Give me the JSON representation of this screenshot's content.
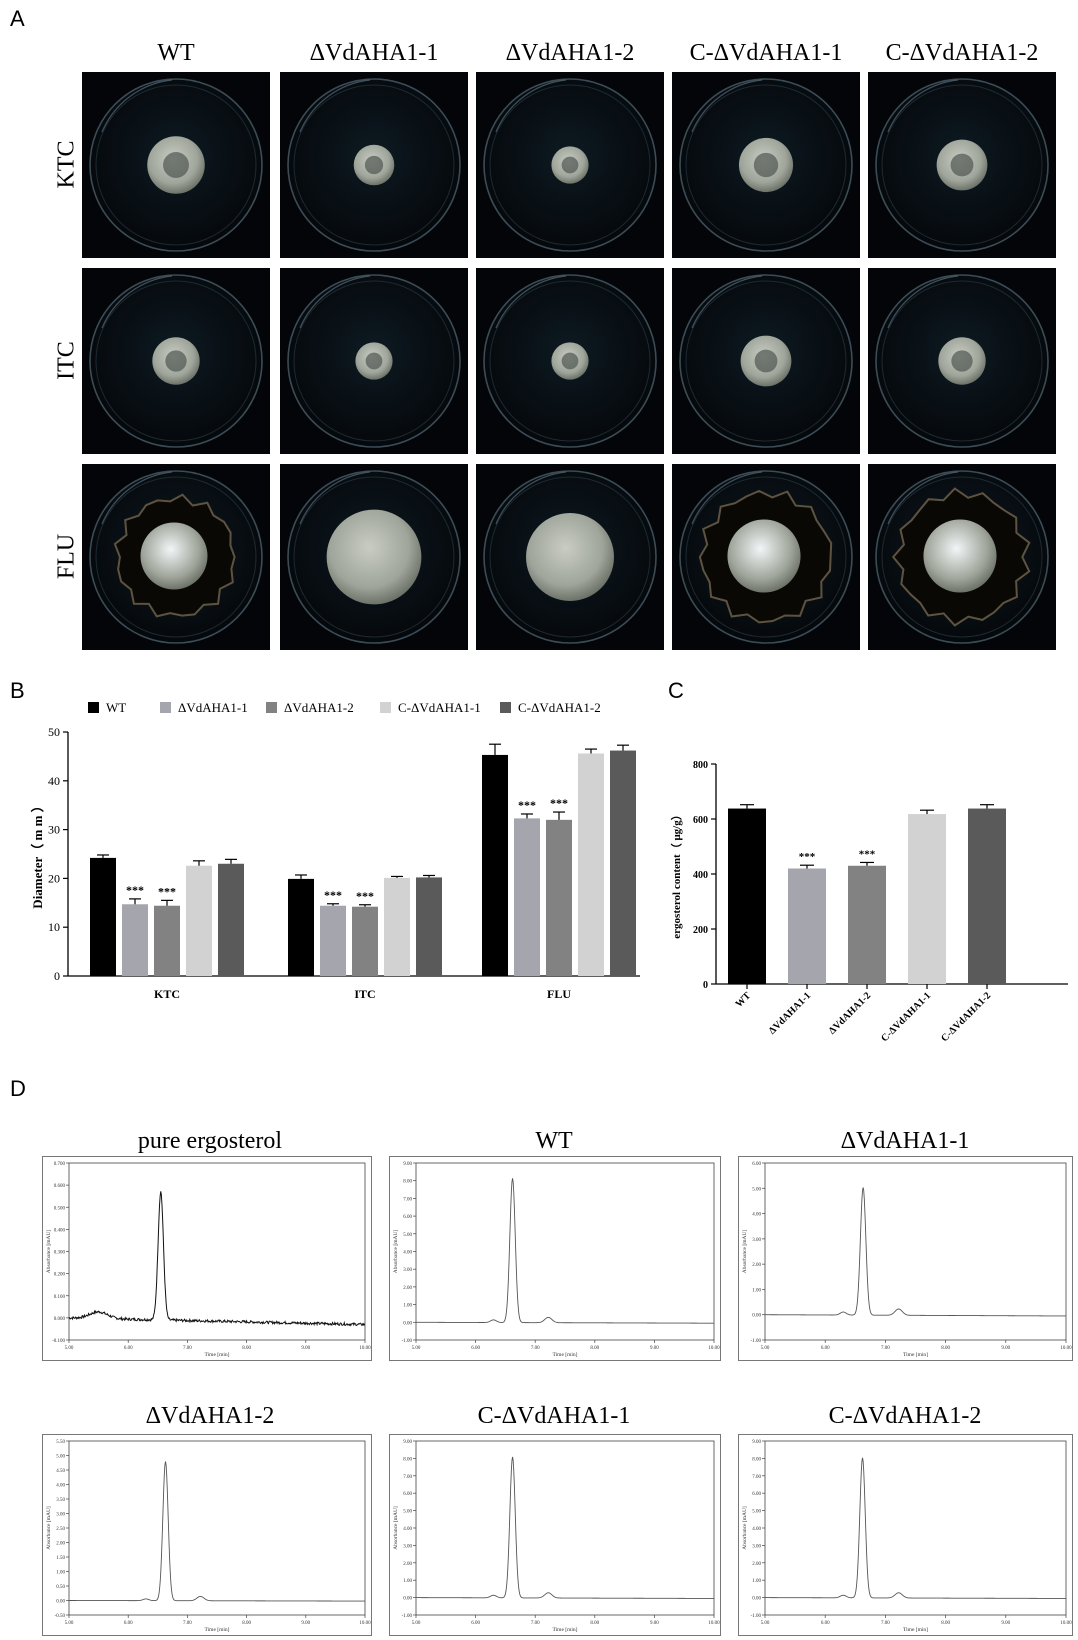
{
  "panels": {
    "a": "A",
    "b": "B",
    "c": "C",
    "d": "D"
  },
  "panel_a": {
    "columns": [
      "WT",
      "ΔVdAHA1-1",
      "ΔVdAHA1-2",
      "C-ΔVdAHA1-1",
      "C-ΔVdAHA1-2"
    ],
    "rows": [
      "KTC",
      "ITC",
      "FLU"
    ]
  },
  "chart_data": [
    {
      "type": "bar",
      "panel": "B",
      "ylabel": "Diameter（ m m ）",
      "ylim": [
        0,
        50
      ],
      "yticks": [
        0,
        10,
        20,
        30,
        40,
        50
      ],
      "categories": [
        "KTC",
        "ITC",
        "FLU"
      ],
      "legend_position": "top",
      "series": [
        {
          "name": "WT",
          "color": "#000000",
          "values": [
            24.2,
            19.9,
            45.3
          ],
          "errors": [
            0.6,
            0.8,
            2.2
          ],
          "sig": [
            "",
            "",
            ""
          ]
        },
        {
          "name": "ΔVdAHA1-1",
          "color": "#a5a5ad",
          "values": [
            14.7,
            14.4,
            32.3
          ],
          "errors": [
            1.1,
            0.4,
            0.9
          ],
          "sig": [
            "***",
            "***",
            "***"
          ]
        },
        {
          "name": "ΔVdAHA1-2",
          "color": "#828282",
          "values": [
            14.4,
            14.2,
            32.0
          ],
          "errors": [
            1.1,
            0.4,
            1.6
          ],
          "sig": [
            "***",
            "***",
            "***"
          ]
        },
        {
          "name": "C-ΔVdAHA1-1",
          "color": "#d2d2d2",
          "values": [
            22.6,
            20.1,
            45.6
          ],
          "errors": [
            1.0,
            0.3,
            0.9
          ],
          "sig": [
            "",
            "",
            ""
          ]
        },
        {
          "name": "C-ΔVdAHA1-2",
          "color": "#5a5a5a",
          "values": [
            23.0,
            20.2,
            46.2
          ],
          "errors": [
            0.9,
            0.4,
            1.1
          ],
          "sig": [
            "",
            "",
            ""
          ]
        }
      ]
    },
    {
      "type": "bar",
      "panel": "C",
      "ylabel": "ergosterol content（ μg/g）",
      "ylim": [
        0,
        800
      ],
      "yticks": [
        0,
        200,
        400,
        600,
        800
      ],
      "categories": [
        "WT",
        "ΔVdAHA1-1",
        "ΔVdAHA1-2",
        "C-ΔVdAHA1-1",
        "C-ΔVdAHA1-2"
      ],
      "colors": [
        "#000000",
        "#a5a5ad",
        "#828282",
        "#d2d2d2",
        "#5a5a5a"
      ],
      "values": [
        638,
        420,
        430,
        618,
        638
      ],
      "errors": [
        14,
        12,
        12,
        14,
        14
      ],
      "sig": [
        "",
        "***",
        "***",
        "",
        ""
      ]
    },
    {
      "type": "line",
      "panel": "D",
      "title": "pure ergosterol",
      "xlabel": "Time [min]",
      "ylabel": "Absorbance [mAU]",
      "xlim": [
        5.0,
        10.0
      ],
      "xticks": [
        "5.00",
        "6.00",
        "7.00",
        "8.00",
        "9.00",
        "10.00"
      ],
      "ylim": [
        -0.1,
        0.7
      ],
      "yticks": [
        "-0.100",
        "0.000",
        "0.100",
        "0.200",
        "0.300",
        "0.400",
        "0.500",
        "0.600",
        "0.700"
      ],
      "peaks": [
        {
          "x": 6.55,
          "y": 0.58,
          "w": 0.045
        },
        {
          "x": 5.5,
          "y": 0.03,
          "w": 0.15
        }
      ],
      "baseline": [
        0.0,
        -0.03
      ],
      "noise": 0.006
    },
    {
      "type": "line",
      "panel": "D",
      "title": "WT",
      "xlabel": "Time [min]",
      "ylabel": "Absorbance [mAU]",
      "xlim": [
        5.0,
        10.0
      ],
      "xticks": [
        "5.00",
        "6.00",
        "7.00",
        "8.00",
        "9.00",
        "10.00"
      ],
      "ylim": [
        -1.0,
        9.0
      ],
      "yticks": [
        "-1.00",
        "0.00",
        "1.00",
        "2.00",
        "3.00",
        "4.00",
        "5.00",
        "6.00",
        "7.00",
        "8.00",
        "9.00"
      ],
      "peaks": [
        {
          "x": 6.62,
          "y": 8.15,
          "w": 0.045
        },
        {
          "x": 7.22,
          "y": 0.3,
          "w": 0.06
        },
        {
          "x": 6.3,
          "y": 0.15,
          "w": 0.05
        }
      ],
      "baseline": [
        0.0,
        -0.05
      ],
      "noise": 0
    },
    {
      "type": "line",
      "panel": "D",
      "title": "ΔVdAHA1-1",
      "xlabel": "Time [min]",
      "ylabel": "Absorbance [mAU]",
      "xlim": [
        5.0,
        10.0
      ],
      "xticks": [
        "5.00",
        "6.00",
        "7.00",
        "8.00",
        "9.00",
        "10.00"
      ],
      "ylim": [
        -1.0,
        6.0
      ],
      "yticks": [
        "-1.00",
        "0.00",
        "1.00",
        "2.00",
        "3.00",
        "4.00",
        "5.00",
        "6.00"
      ],
      "peaks": [
        {
          "x": 6.63,
          "y": 5.05,
          "w": 0.045
        },
        {
          "x": 7.22,
          "y": 0.25,
          "w": 0.06
        },
        {
          "x": 6.3,
          "y": 0.12,
          "w": 0.05
        }
      ],
      "baseline": [
        0.0,
        -0.05
      ],
      "noise": 0
    },
    {
      "type": "line",
      "panel": "D",
      "title": "ΔVdAHA1-2",
      "xlabel": "Time [min]",
      "ylabel": "Absorbance [mAU]",
      "xlim": [
        5.0,
        10.0
      ],
      "xticks": [
        "5.00",
        "6.00",
        "7.00",
        "8.00",
        "9.00",
        "10.00"
      ],
      "ylim": [
        -0.5,
        5.5
      ],
      "yticks": [
        "-0.50",
        "0.00",
        "0.50",
        "1.00",
        "1.50",
        "2.00",
        "2.50",
        "3.00",
        "3.50",
        "4.00",
        "4.50",
        "5.00",
        "5.50"
      ],
      "peaks": [
        {
          "x": 6.63,
          "y": 4.8,
          "w": 0.045
        },
        {
          "x": 7.22,
          "y": 0.15,
          "w": 0.06
        },
        {
          "x": 6.3,
          "y": 0.06,
          "w": 0.05
        }
      ],
      "baseline": [
        0.0,
        -0.02
      ],
      "noise": 0
    },
    {
      "type": "line",
      "panel": "D",
      "title": "C-ΔVdAHA1-1",
      "xlabel": "Time [min]",
      "ylabel": "Absorbance [mAU]",
      "xlim": [
        5.0,
        10.0
      ],
      "xticks": [
        "5.00",
        "6.00",
        "7.00",
        "8.00",
        "9.00",
        "10.00"
      ],
      "ylim": [
        -1.0,
        9.0
      ],
      "yticks": [
        "-1.00",
        "0.00",
        "1.00",
        "2.00",
        "3.00",
        "4.00",
        "5.00",
        "6.00",
        "7.00",
        "8.00",
        "9.00"
      ],
      "peaks": [
        {
          "x": 6.62,
          "y": 8.1,
          "w": 0.045
        },
        {
          "x": 7.22,
          "y": 0.3,
          "w": 0.06
        },
        {
          "x": 6.3,
          "y": 0.15,
          "w": 0.05
        }
      ],
      "baseline": [
        0.0,
        -0.05
      ],
      "noise": 0
    },
    {
      "type": "line",
      "panel": "D",
      "title": "C-ΔVdAHA1-2",
      "xlabel": "Time [min]",
      "ylabel": "Absorbance [mAU]",
      "xlim": [
        5.0,
        10.0
      ],
      "xticks": [
        "5.00",
        "6.00",
        "7.00",
        "8.00",
        "9.00",
        "10.00"
      ],
      "ylim": [
        -1.0,
        9.0
      ],
      "yticks": [
        "-1.00",
        "0.00",
        "1.00",
        "2.00",
        "3.00",
        "4.00",
        "5.00",
        "6.00",
        "7.00",
        "8.00",
        "9.00"
      ],
      "peaks": [
        {
          "x": 6.62,
          "y": 8.05,
          "w": 0.045
        },
        {
          "x": 7.22,
          "y": 0.3,
          "w": 0.06
        },
        {
          "x": 6.3,
          "y": 0.15,
          "w": 0.05
        }
      ],
      "baseline": [
        0.0,
        -0.05
      ],
      "noise": 0
    }
  ]
}
